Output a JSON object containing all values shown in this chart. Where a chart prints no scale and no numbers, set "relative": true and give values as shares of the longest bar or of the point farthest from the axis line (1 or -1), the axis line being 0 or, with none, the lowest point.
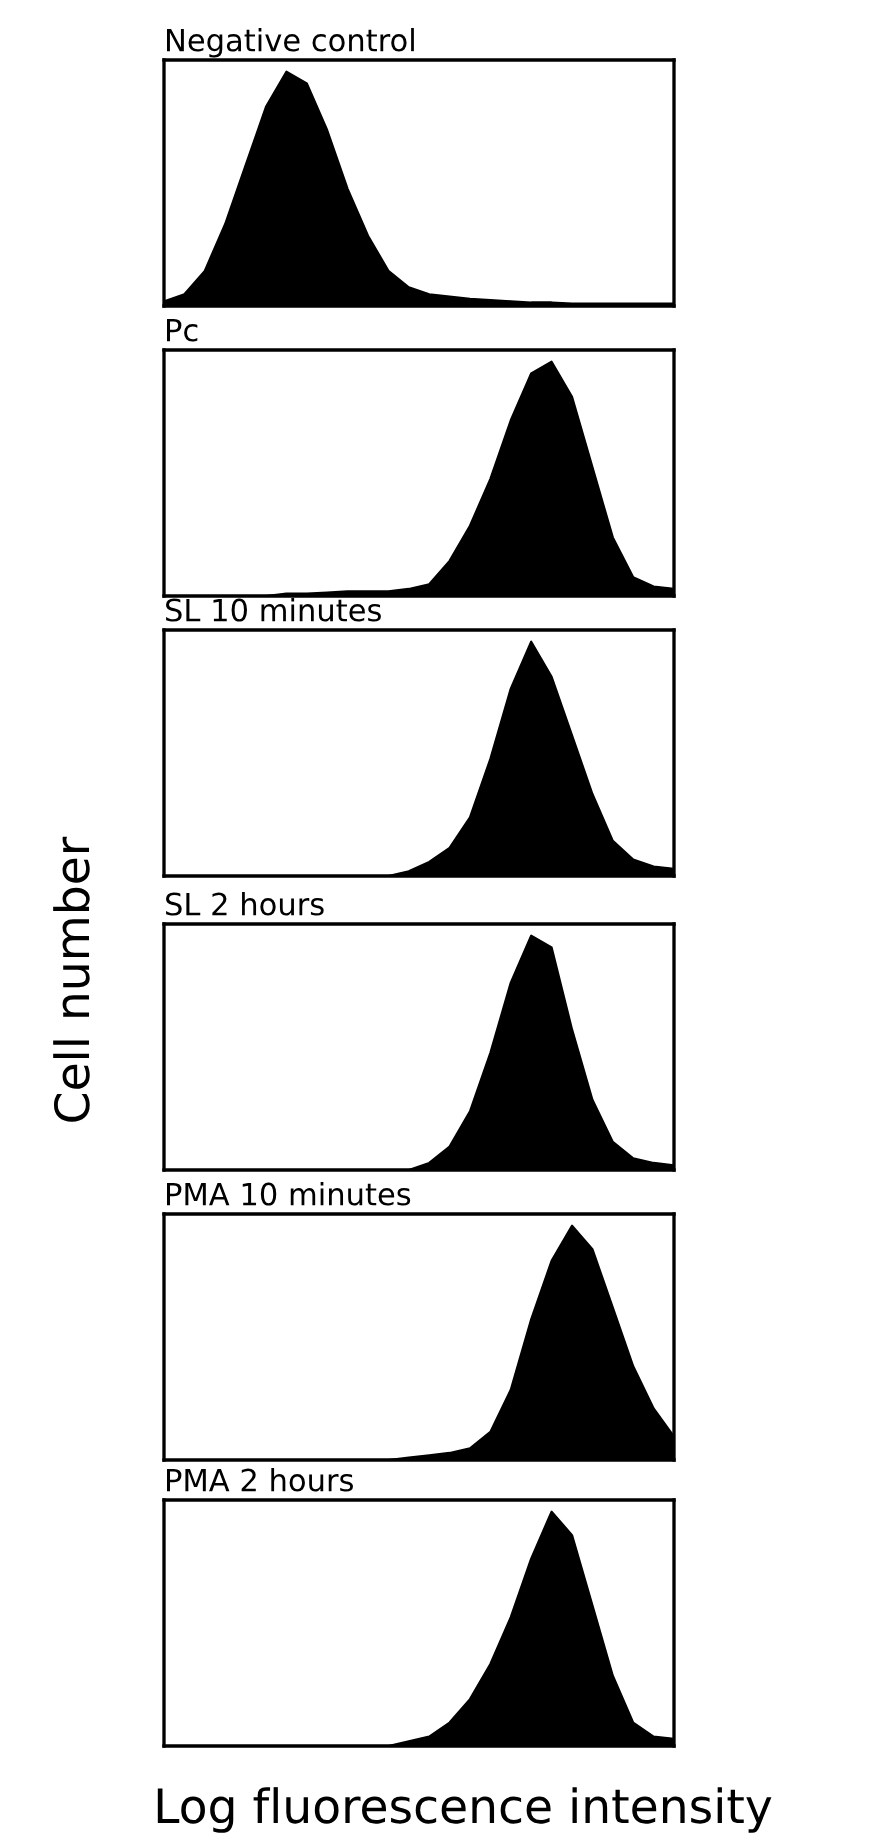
{
  "chart_data": [
    {
      "type": "area",
      "title": "Negative control",
      "relative": true,
      "color": "#000000",
      "categories": [
        null,
        null,
        null,
        null,
        null,
        null,
        null,
        null,
        null,
        null,
        null,
        null,
        null,
        null,
        null,
        null,
        null,
        null,
        null,
        null,
        null,
        null,
        null,
        null,
        null,
        null
      ],
      "values": [
        0.02,
        0.05,
        0.15,
        0.35,
        0.6,
        0.85,
        1.0,
        0.95,
        0.75,
        0.5,
        0.3,
        0.15,
        0.08,
        0.05,
        0.04,
        0.03,
        0.025,
        0.02,
        0.015,
        0.015,
        0.01,
        0.01,
        0.01,
        0.01,
        0.01,
        0.01
      ]
    },
    {
      "type": "area",
      "title": "Pc",
      "relative": true,
      "color": "#000000",
      "categories": [
        null,
        null,
        null,
        null,
        null,
        null,
        null,
        null,
        null,
        null,
        null,
        null,
        null,
        null,
        null,
        null,
        null,
        null,
        null,
        null,
        null,
        null,
        null,
        null,
        null,
        null
      ],
      "values": [
        0,
        0,
        0,
        0,
        0,
        0,
        0.01,
        0.01,
        0.015,
        0.02,
        0.02,
        0.02,
        0.03,
        0.05,
        0.15,
        0.3,
        0.5,
        0.75,
        0.95,
        1.0,
        0.85,
        0.55,
        0.25,
        0.08,
        0.04,
        0.03
      ]
    },
    {
      "type": "area",
      "title": "SL 10 minutes",
      "relative": true,
      "color": "#000000",
      "categories": [
        null,
        null,
        null,
        null,
        null,
        null,
        null,
        null,
        null,
        null,
        null,
        null,
        null,
        null,
        null,
        null,
        null,
        null,
        null,
        null,
        null,
        null,
        null,
        null,
        null,
        null
      ],
      "values": [
        0,
        0,
        0,
        0,
        0,
        0,
        0,
        0,
        0,
        0,
        0,
        0,
        0.02,
        0.06,
        0.12,
        0.25,
        0.5,
        0.8,
        1.0,
        0.85,
        0.6,
        0.35,
        0.15,
        0.07,
        0.04,
        0.03
      ]
    },
    {
      "type": "area",
      "title": "SL 2 hours",
      "ylabel": "Cell number",
      "relative": true,
      "color": "#000000",
      "categories": [
        null,
        null,
        null,
        null,
        null,
        null,
        null,
        null,
        null,
        null,
        null,
        null,
        null,
        null,
        null,
        null,
        null,
        null,
        null,
        null,
        null,
        null,
        null,
        null,
        null,
        null
      ],
      "values": [
        0,
        0,
        0,
        0,
        0,
        0,
        0,
        0,
        0,
        0,
        0,
        0,
        0,
        0.03,
        0.1,
        0.25,
        0.5,
        0.8,
        1.0,
        0.95,
        0.6,
        0.3,
        0.12,
        0.05,
        0.03,
        0.02
      ]
    },
    {
      "type": "area",
      "title": "PMA 10 minutes",
      "relative": true,
      "color": "#000000",
      "categories": [
        null,
        null,
        null,
        null,
        null,
        null,
        null,
        null,
        null,
        null,
        null,
        null,
        null,
        null,
        null,
        null,
        null,
        null,
        null,
        null,
        null,
        null,
        null,
        null,
        null,
        null
      ],
      "values": [
        0,
        0,
        0,
        0,
        0,
        0,
        0,
        0,
        0,
        0,
        0,
        0,
        0.01,
        0.02,
        0.03,
        0.05,
        0.12,
        0.3,
        0.6,
        0.85,
        1.0,
        0.9,
        0.65,
        0.4,
        0.22,
        0.1
      ]
    },
    {
      "type": "area",
      "title": "PMA 2 hours",
      "xlabel": "Log fluorescence intensity",
      "relative": true,
      "color": "#000000",
      "categories": [
        null,
        null,
        null,
        null,
        null,
        null,
        null,
        null,
        null,
        null,
        null,
        null,
        null,
        null,
        null,
        null,
        null,
        null,
        null,
        null,
        null,
        null,
        null,
        null,
        null,
        null
      ],
      "values": [
        0,
        0,
        0,
        0,
        0,
        0,
        0,
        0,
        0,
        0,
        0,
        0,
        0.02,
        0.04,
        0.1,
        0.2,
        0.35,
        0.55,
        0.8,
        1.0,
        0.9,
        0.6,
        0.3,
        0.1,
        0.04,
        0.03
      ]
    }
  ]
}
